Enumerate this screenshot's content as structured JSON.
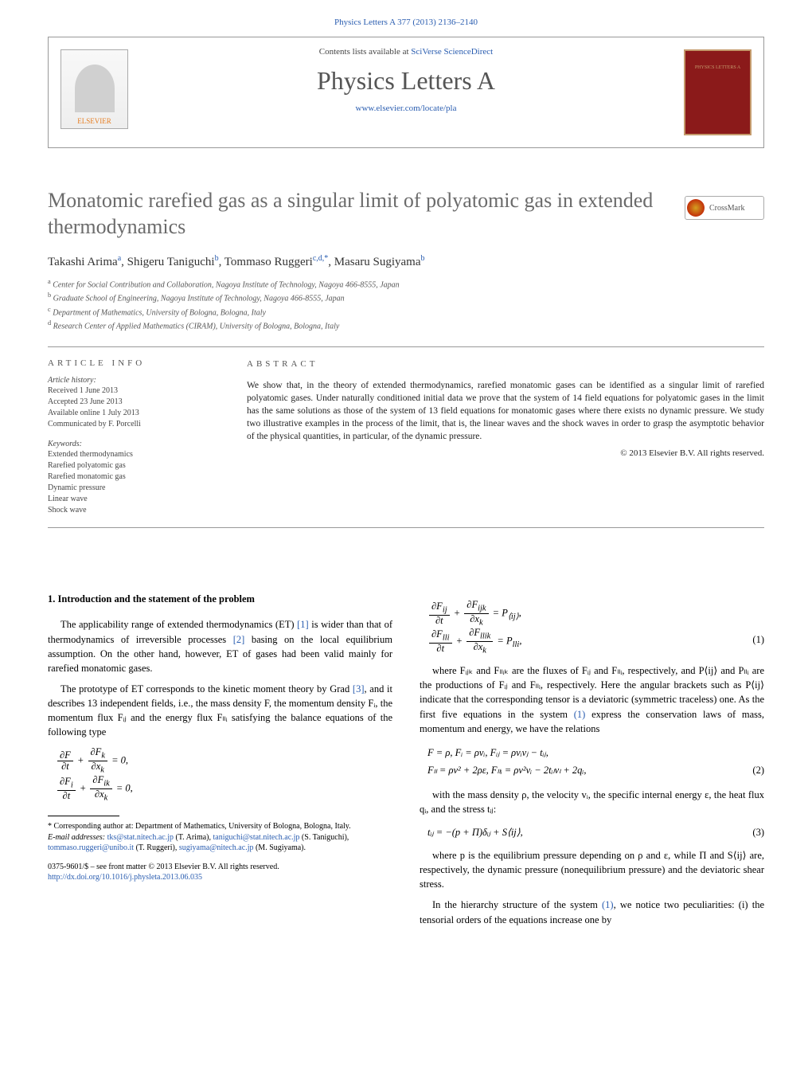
{
  "header": {
    "citation": "Physics Letters A 377 (2013) 2136–2140",
    "contents_line_pre": "Contents lists available at ",
    "contents_line_link": "SciVerse ScienceDirect",
    "journal_name": "Physics Letters A",
    "journal_home": "www.elsevier.com/locate/pla",
    "elsevier_label": "ELSEVIER",
    "journal_logo_text": "PHYSICS LETTERS A",
    "crossmark": "CrossMark"
  },
  "article": {
    "title": "Monatomic rarefied gas as a singular limit of polyatomic gas in extended thermodynamics",
    "authors_html": "Takashi Arima<sup>a</sup>, Shigeru Taniguchi<sup>b</sup>, Tommaso Ruggeri<sup>c,d,*</sup>, Masaru Sugiyama<sup>b</sup>",
    "affiliations": [
      {
        "sup": "a",
        "text": "Center for Social Contribution and Collaboration, Nagoya Institute of Technology, Nagoya 466-8555, Japan"
      },
      {
        "sup": "b",
        "text": "Graduate School of Engineering, Nagoya Institute of Technology, Nagoya 466-8555, Japan"
      },
      {
        "sup": "c",
        "text": "Department of Mathematics, University of Bologna, Bologna, Italy"
      },
      {
        "sup": "d",
        "text": "Research Center of Applied Mathematics (CIRAM), University of Bologna, Bologna, Italy"
      }
    ]
  },
  "info": {
    "heading": "ARTICLE INFO",
    "history_head": "Article history:",
    "history": [
      "Received 1 June 2013",
      "Accepted 23 June 2013",
      "Available online 1 July 2013",
      "Communicated by F. Porcelli"
    ],
    "keywords_head": "Keywords:",
    "keywords": [
      "Extended thermodynamics",
      "Rarefied polyatomic gas",
      "Rarefied monatomic gas",
      "Dynamic pressure",
      "Linear wave",
      "Shock wave"
    ]
  },
  "abstract": {
    "heading": "ABSTRACT",
    "text": "We show that, in the theory of extended thermodynamics, rarefied monatomic gases can be identified as a singular limit of rarefied polyatomic gases. Under naturally conditioned initial data we prove that the system of 14 field equations for polyatomic gases in the limit has the same solutions as those of the system of 13 field equations for monatomic gases where there exists no dynamic pressure. We study two illustrative examples in the process of the limit, that is, the linear waves and the shock waves in order to grasp the asymptotic behavior of the physical quantities, in particular, of the dynamic pressure.",
    "copyright": "© 2013 Elsevier B.V. All rights reserved."
  },
  "body": {
    "section1_heading": "1. Introduction and the statement of the problem",
    "para1": "The applicability range of extended thermodynamics (ET) [1] is wider than that of thermodynamics of irreversible processes [2] basing on the local equilibrium assumption. On the other hand, however, ET of gases had been valid mainly for rarefied monatomic gases.",
    "para2": "The prototype of ET corresponds to the kinetic moment theory by Grad [3], and it describes 13 independent fields, i.e., the mass density F, the momentum density Fᵢ, the momentum flux Fᵢⱼ and the energy flux Fₗₗᵢ satisfying the balance equations of the following type",
    "para3_pre": "where Fᵢⱼₖ and Fₗₗᵢₖ are the fluxes of Fᵢⱼ and Fₗₗᵢ, respectively, and P⟨ij⟩ and Pₗₗᵢ are the productions of Fᵢⱼ and Fₗₗᵢ, respectively. Here the angular brackets such as P⟨ij⟩ indicate that the corresponding tensor is a deviatoric (symmetric traceless) one. As the first five equations in the system (1) express the conservation laws of mass, momentum and energy, we have the relations",
    "eq2_line1": "F = ρ,      Fᵢ = ρvᵢ,      Fᵢⱼ = ρvᵢvⱼ − tᵢⱼ,",
    "eq2_line2": "Fₗₗ = ρv² + 2ρε,      Fₗₗᵢ = ρv²vᵢ − 2tᵢₗvₗ + 2qᵢ,",
    "para4": "with the mass density ρ, the velocity vᵢ, the specific internal energy ε, the heat flux qᵢ, and the stress tᵢⱼ:",
    "eq3": "tᵢⱼ = −(p + Π)δᵢⱼ + S⟨ij⟩,",
    "para5": "where p is the equilibrium pressure depending on ρ and ε, while Π and S⟨ij⟩ are, respectively, the dynamic pressure (nonequilibrium pressure) and the deviatoric shear stress.",
    "para6": "In the hierarchy structure of the system (1), we notice two peculiarities: (i) the tensorial orders of the equations increase one by"
  },
  "footnotes": {
    "corr": "* Corresponding author at: Department of Mathematics, University of Bologna, Bologna, Italy.",
    "emails_label": "E-mail addresses: ",
    "emails": "tks@stat.nitech.ac.jp (T. Arima), taniguchi@stat.nitech.ac.jp (S. Taniguchi), tommaso.ruggeri@unibo.it (T. Ruggeri), sugiyama@nitech.ac.jp (M. Sugiyama).",
    "frontmatter": "0375-9601/$ – see front matter © 2013 Elsevier B.V. All rights reserved.",
    "doi": "http://dx.doi.org/10.1016/j.physleta.2013.06.035"
  },
  "colors": {
    "link": "#2a5db0",
    "title_gray": "#6b6b6b",
    "journal_red": "#8b1a1a"
  }
}
